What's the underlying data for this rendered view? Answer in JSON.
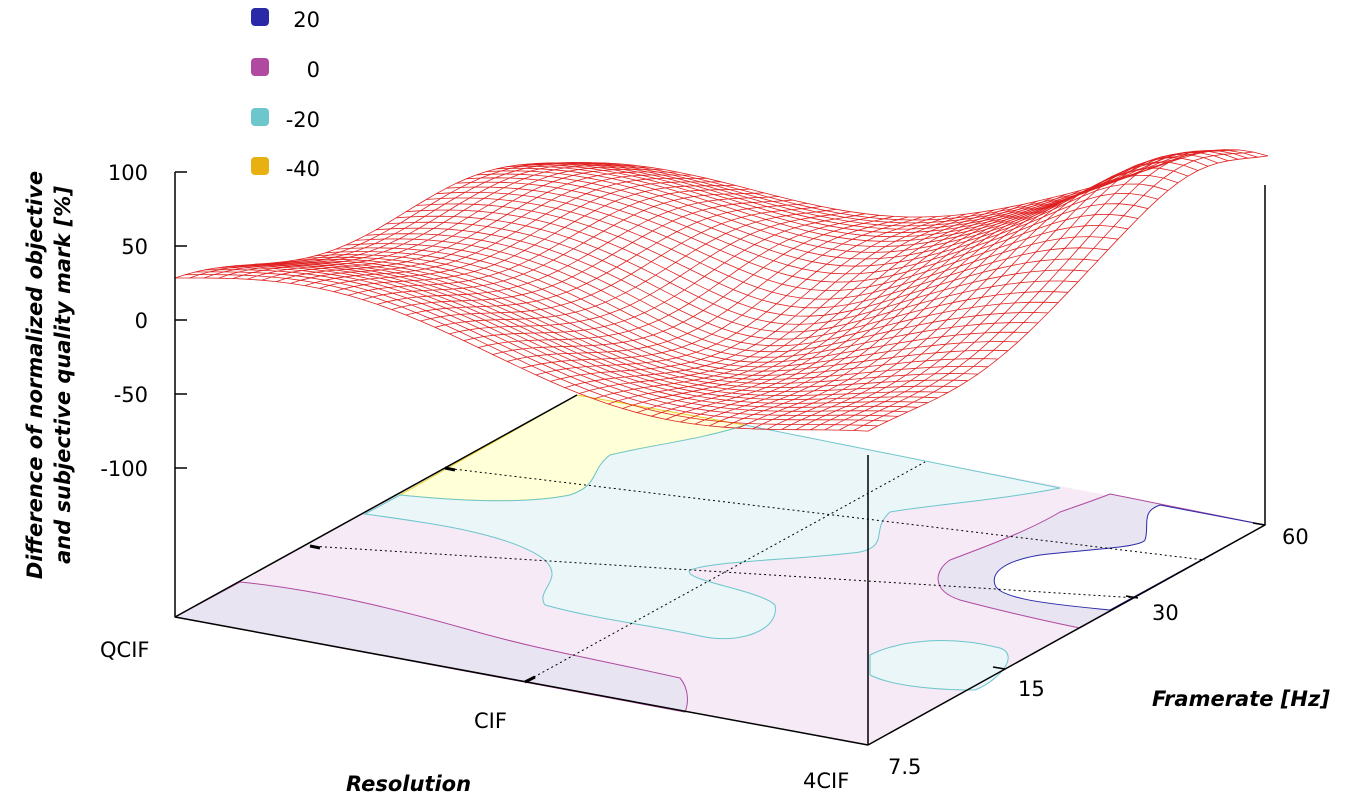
{
  "chart_data": {
    "type": "surface3d",
    "zlabel_line1": "Difference of normalized objective",
    "zlabel_line2": "and subjective quality mark [%]",
    "xlabel": "Resolution",
    "ylabel": "Framerate [Hz]",
    "x_ticks": [
      "QCIF",
      "CIF",
      "4CIF"
    ],
    "y_ticks": [
      "7.5",
      "15",
      "30",
      "60"
    ],
    "z_ticks": [
      "100",
      "50",
      "0",
      "-50",
      "-100"
    ],
    "zlim": [
      -100,
      100
    ],
    "legend": [
      {
        "label": "20",
        "color": "#2a2aa8"
      },
      {
        "label": "0",
        "color": "#b04aa0"
      },
      {
        "label": "-20",
        "color": "#6cc6cc"
      },
      {
        "label": "-40",
        "color": "#e8b010"
      }
    ],
    "surface_color": "#e02020",
    "grid_floor_dotted": true
  }
}
